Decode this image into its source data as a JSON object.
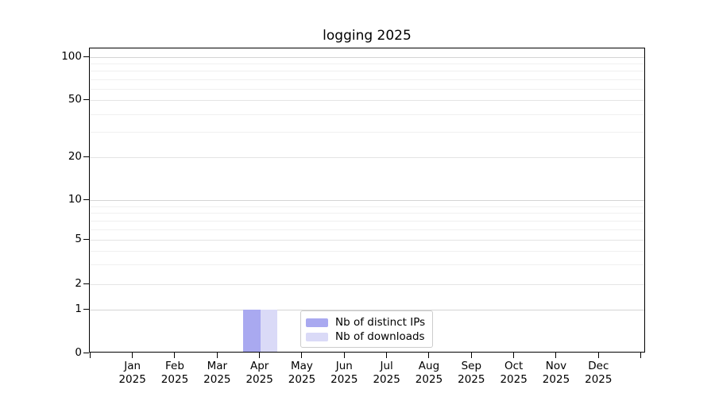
{
  "chart_data": {
    "type": "bar",
    "title": "logging 2025",
    "categories": [
      {
        "month": "Jan",
        "year": "2025"
      },
      {
        "month": "Feb",
        "year": "2025"
      },
      {
        "month": "Mar",
        "year": "2025"
      },
      {
        "month": "Apr",
        "year": "2025"
      },
      {
        "month": "May",
        "year": "2025"
      },
      {
        "month": "Jun",
        "year": "2025"
      },
      {
        "month": "Jul",
        "year": "2025"
      },
      {
        "month": "Aug",
        "year": "2025"
      },
      {
        "month": "Sep",
        "year": "2025"
      },
      {
        "month": "Oct",
        "year": "2025"
      },
      {
        "month": "Nov",
        "year": "2025"
      },
      {
        "month": "Dec",
        "year": "2025"
      }
    ],
    "series": [
      {
        "name": "Nb of distinct IPs",
        "color": "#a9a9f0",
        "values": [
          0,
          0,
          0,
          1,
          0,
          0,
          0,
          0,
          0,
          0,
          0,
          0
        ]
      },
      {
        "name": "Nb of downloads",
        "color": "#dadaf7",
        "values": [
          0,
          0,
          0,
          1,
          0,
          0,
          0,
          0,
          0,
          0,
          0,
          0
        ]
      }
    ],
    "xlabel": "",
    "ylabel": "",
    "yaxis": {
      "scale": "symlog",
      "ticks": [
        0,
        1,
        2,
        5,
        10,
        20,
        50,
        100
      ],
      "minor_gridline_values": [
        3,
        4,
        6,
        7,
        8,
        9,
        30,
        40,
        60,
        70,
        80,
        90
      ]
    },
    "grid": "both",
    "legend": {
      "position": "lower center"
    }
  }
}
